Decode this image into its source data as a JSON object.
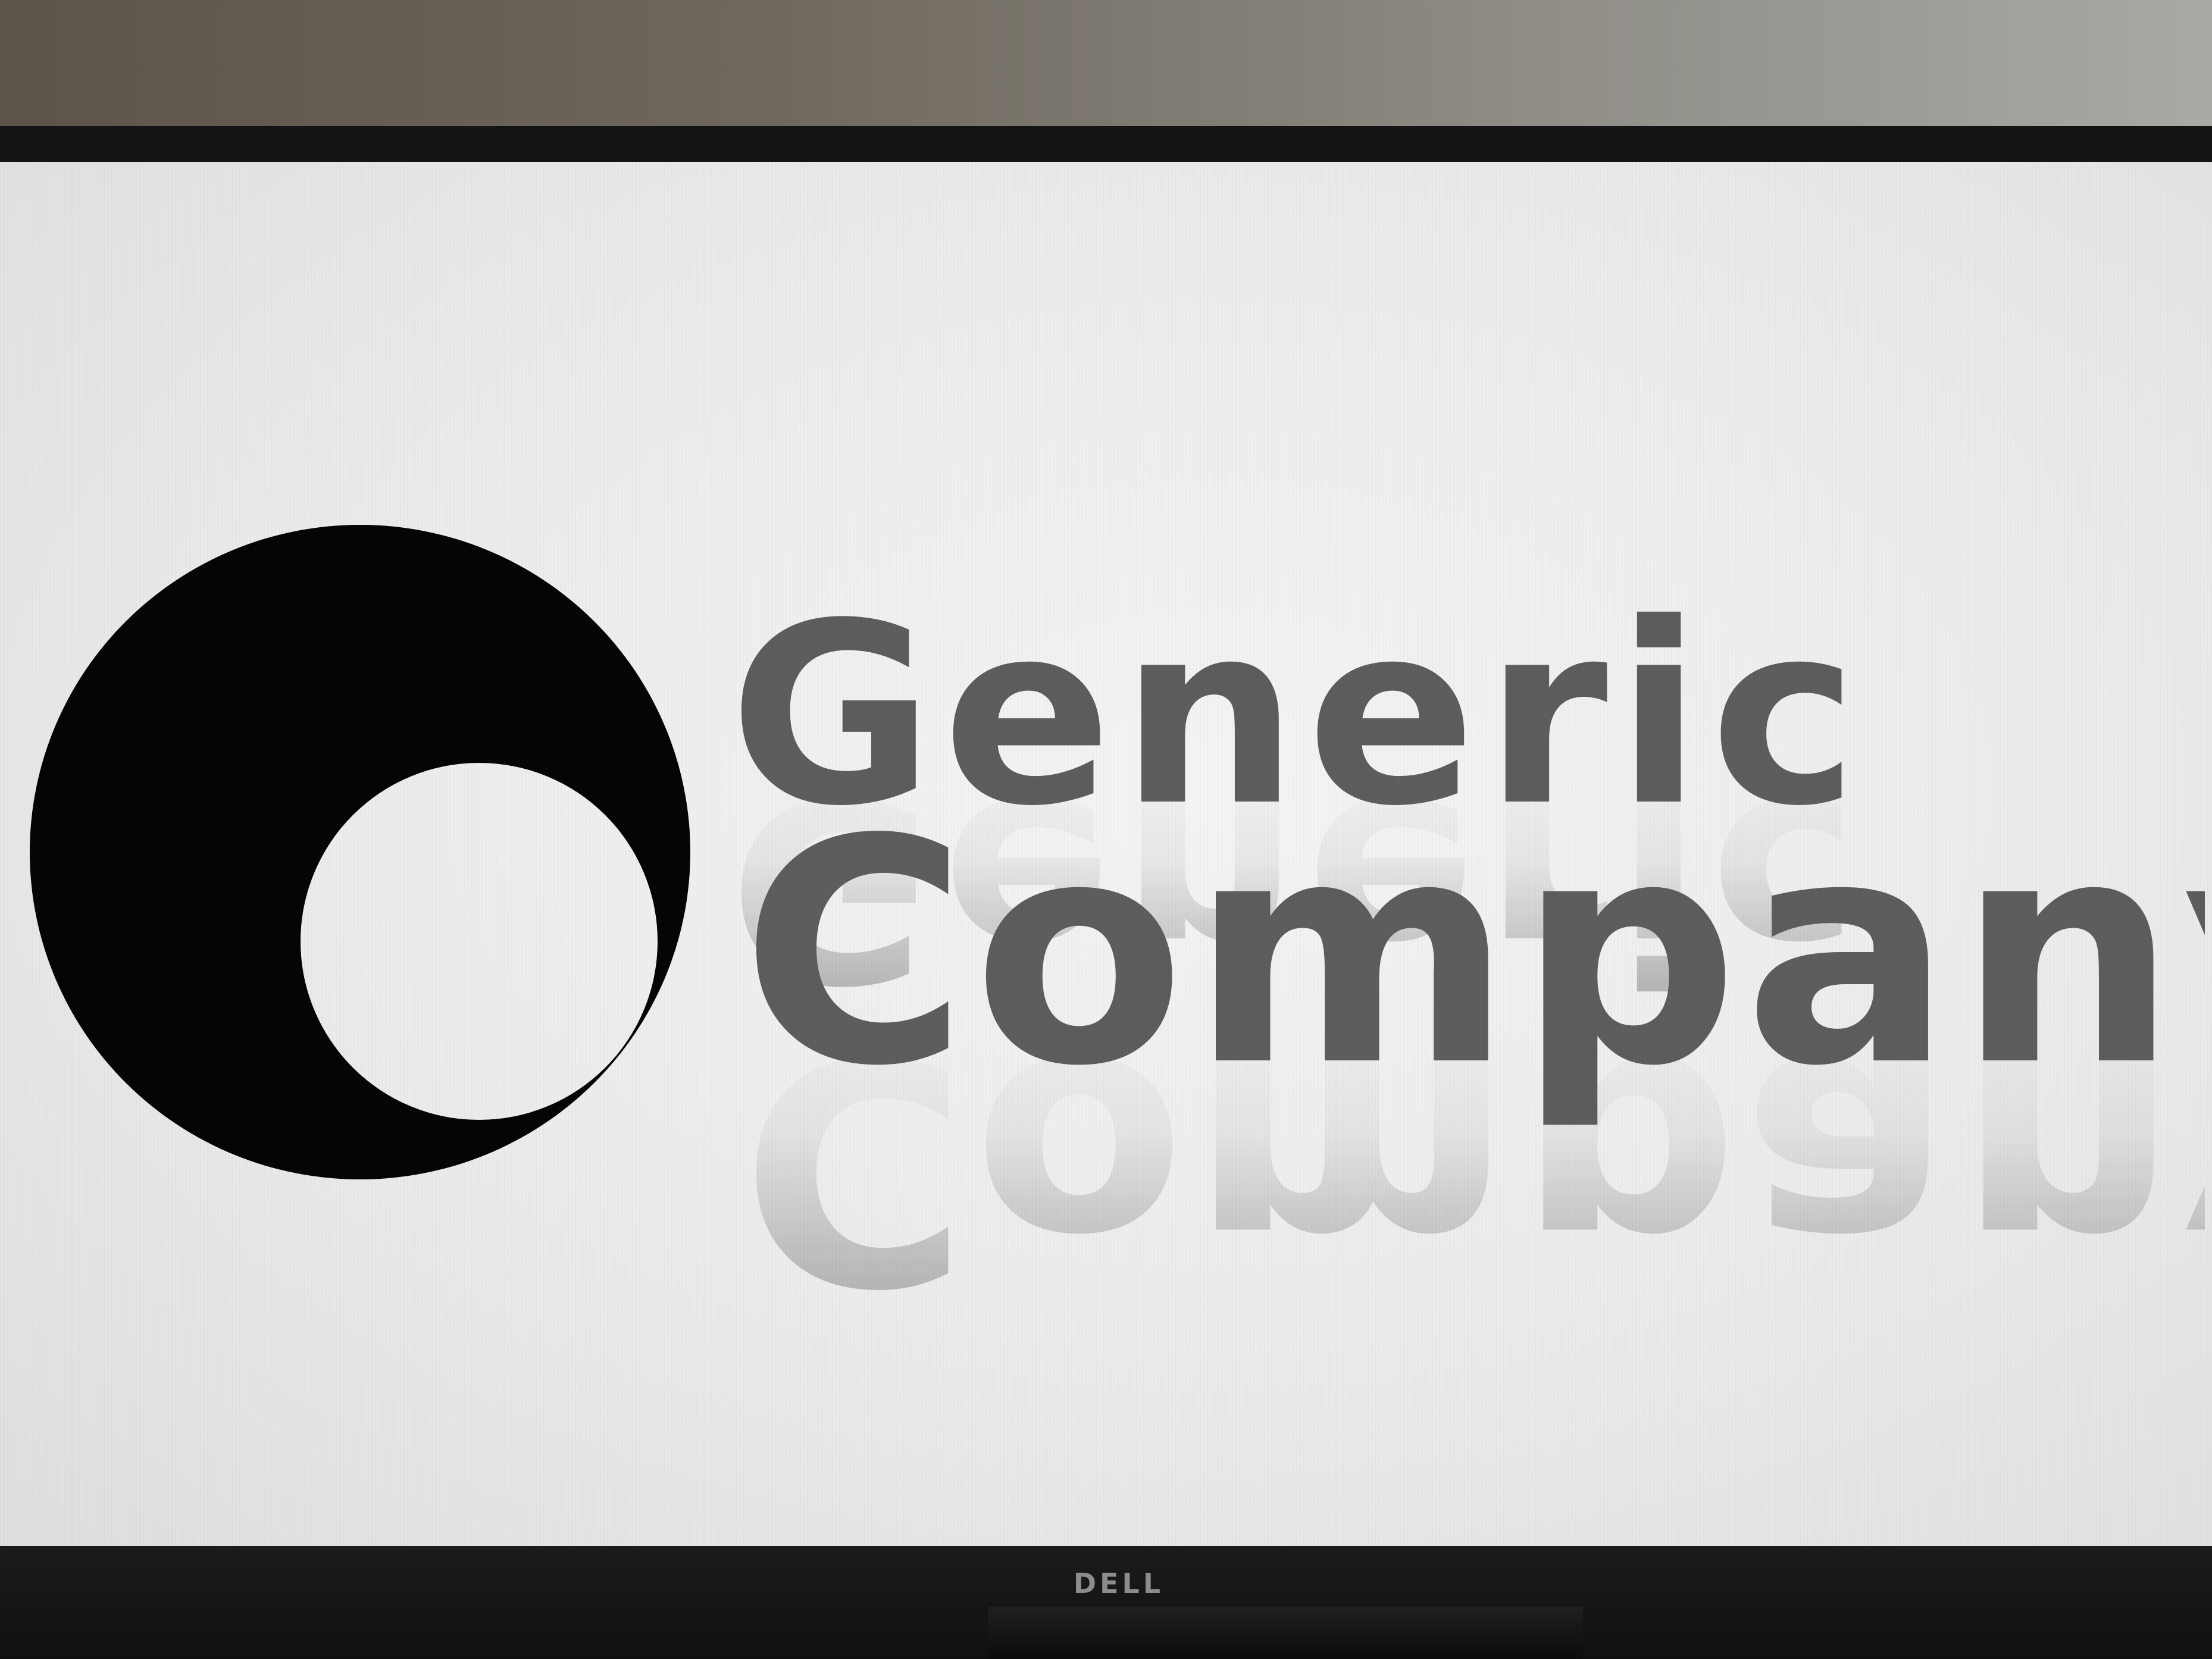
{
  "monitor": {
    "brand_label": "DELL",
    "bezel_color": "#141414",
    "screen_color": "#f0f0ee"
  },
  "logo": {
    "name_line_1": "Generic",
    "name_line_2": "Company",
    "text_color": "#5e5d5c",
    "mark_color": "#050505",
    "mark_description_icon": "crescent-circle-logo-icon"
  }
}
